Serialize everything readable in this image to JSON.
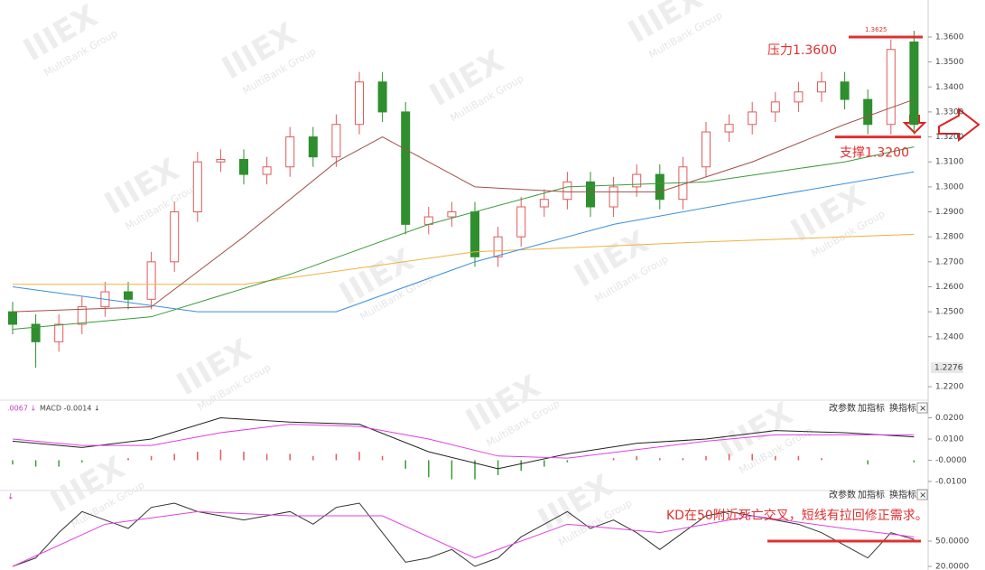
{
  "watermark": "MultiBank Group",
  "logo": "IIIEX",
  "buttons": [
    "改参数",
    "加指标",
    "换指标",
    "×"
  ],
  "chart_data": [
    {
      "type": "candlestick",
      "up_color": "#e05a5a",
      "down_color": "#2f8f2f",
      "open": [
        1.25,
        1.245,
        1.238,
        1.245,
        1.252,
        1.258,
        1.255,
        1.27,
        1.29,
        1.31,
        1.311,
        1.305,
        1.308,
        1.32,
        1.312,
        1.325,
        1.342,
        1.33,
        1.285,
        1.288,
        1.29,
        1.272,
        1.28,
        1.292,
        1.295,
        1.302,
        1.292,
        1.3,
        1.305,
        1.295,
        1.308,
        1.322,
        1.325,
        1.33,
        1.334,
        1.338,
        1.342,
        1.335,
        1.325,
        1.358
      ],
      "high": [
        1.254,
        1.249,
        1.249,
        1.256,
        1.262,
        1.262,
        1.274,
        1.294,
        1.314,
        1.315,
        1.315,
        1.312,
        1.324,
        1.324,
        1.329,
        1.346,
        1.346,
        1.334,
        1.292,
        1.294,
        1.294,
        1.284,
        1.296,
        1.299,
        1.306,
        1.306,
        1.304,
        1.309,
        1.309,
        1.312,
        1.326,
        1.329,
        1.334,
        1.338,
        1.342,
        1.346,
        1.346,
        1.339,
        1.359,
        1.3625
      ],
      "low": [
        1.241,
        1.2276,
        1.234,
        1.241,
        1.248,
        1.251,
        1.251,
        1.266,
        1.286,
        1.306,
        1.301,
        1.301,
        1.304,
        1.308,
        1.308,
        1.321,
        1.326,
        1.281,
        1.281,
        1.284,
        1.268,
        1.268,
        1.276,
        1.288,
        1.291,
        1.288,
        1.288,
        1.296,
        1.291,
        1.291,
        1.304,
        1.318,
        1.321,
        1.326,
        1.33,
        1.334,
        1.331,
        1.321,
        1.321,
        1.321
      ],
      "close": [
        1.245,
        1.238,
        1.245,
        1.252,
        1.258,
        1.255,
        1.27,
        1.29,
        1.31,
        1.311,
        1.305,
        1.308,
        1.32,
        1.312,
        1.325,
        1.342,
        1.33,
        1.285,
        1.288,
        1.29,
        1.272,
        1.28,
        1.292,
        1.295,
        1.302,
        1.292,
        1.3,
        1.305,
        1.295,
        1.308,
        1.322,
        1.325,
        1.33,
        1.334,
        1.338,
        1.342,
        1.335,
        1.325,
        1.355,
        1.325
      ],
      "series": [
        {
          "color": "#f0b040",
          "x": [
            0,
            10,
            20,
            30,
            39
          ],
          "values": [
            1.261,
            1.261,
            1.274,
            1.278,
            1.281
          ]
        },
        {
          "color": "#3a8fdc",
          "x": [
            0,
            8,
            14,
            20,
            26,
            32,
            39
          ],
          "values": [
            1.26,
            1.25,
            1.25,
            1.27,
            1.285,
            1.295,
            1.306
          ]
        },
        {
          "color": "#3a9a3a",
          "x": [
            0,
            6,
            12,
            18,
            24,
            30,
            36,
            39
          ],
          "values": [
            1.243,
            1.248,
            1.265,
            1.285,
            1.3,
            1.302,
            1.31,
            1.316
          ]
        },
        {
          "color": "#a0504a",
          "x": [
            0,
            6,
            10,
            14,
            16,
            20,
            24,
            28,
            32,
            36,
            39
          ],
          "values": [
            1.25,
            1.252,
            1.28,
            1.31,
            1.32,
            1.3,
            1.298,
            1.298,
            1.31,
            1.325,
            1.335
          ]
        }
      ],
      "ylim": [
        1.2157,
        1.373
      ],
      "yticks": [
        {
          "value": 1.22,
          "label": "1.2200"
        },
        {
          "value": 1.24,
          "label": "1.2400"
        },
        {
          "value": 1.25,
          "label": "1.2500"
        },
        {
          "value": 1.26,
          "label": "1.2600"
        },
        {
          "value": 1.27,
          "label": "1.2700"
        },
        {
          "value": 1.28,
          "label": "1.2800"
        },
        {
          "value": 1.29,
          "label": "1.2900"
        },
        {
          "value": 1.3,
          "label": "1.3000"
        },
        {
          "value": 1.31,
          "label": "1.3100"
        },
        {
          "value": 1.32,
          "label": "1.3200"
        },
        {
          "value": 1.33,
          "label": "1.3300"
        },
        {
          "value": 1.34,
          "label": "1.3400"
        },
        {
          "value": 1.35,
          "label": "1.3500"
        },
        {
          "value": 1.36,
          "label": "1.3600"
        }
      ],
      "price_label": {
        "value": 1.2276,
        "label": "1.2276"
      },
      "annotations": [
        {
          "text": "压力1.3600",
          "value": 1.36
        },
        {
          "text": "支撑1.3200",
          "value": 1.32
        },
        {
          "text": "1.3625",
          "value": 1.3625
        }
      ]
    },
    {
      "type": "macd",
      "header": [
        ".0067 ↓",
        "MACD -0.0014 ↓"
      ],
      "up_color": "#e05a5a",
      "down_color": "#3a9a3a",
      "values": [
        -0.002,
        -0.003,
        -0.003,
        -0.001,
        0.0,
        0.001,
        0.002,
        0.003,
        0.004,
        0.005,
        0.004,
        0.003,
        0.003,
        0.002,
        0.003,
        0.004,
        0.002,
        -0.004,
        -0.008,
        -0.009,
        -0.009,
        -0.007,
        -0.005,
        -0.003,
        -0.001,
        0.0,
        0.001,
        0.002,
        0.001,
        0.001,
        0.002,
        0.003,
        0.003,
        0.002,
        0.002,
        0.001,
        0.0,
        -0.002,
        0.0,
        -0.001
      ],
      "series": [
        {
          "color": "#222222",
          "x": [
            0,
            3,
            6,
            9,
            12,
            15,
            18,
            21,
            24,
            27,
            30,
            33,
            36,
            39
          ],
          "values": [
            0.009,
            0.006,
            0.01,
            0.02,
            0.018,
            0.017,
            0.004,
            -0.004,
            0.003,
            0.008,
            0.01,
            0.014,
            0.013,
            0.011
          ]
        },
        {
          "color": "#e040e0",
          "x": [
            0,
            3,
            6,
            9,
            12,
            15,
            18,
            21,
            24,
            27,
            30,
            33,
            36,
            39
          ],
          "values": [
            0.01,
            0.007,
            0.007,
            0.013,
            0.017,
            0.016,
            0.01,
            0.002,
            0.001,
            0.005,
            0.009,
            0.012,
            0.012,
            0.012
          ]
        }
      ],
      "ylim": [
        -0.013,
        0.0245
      ],
      "yticks": [
        {
          "value": 0.02,
          "label": "0.0200"
        },
        {
          "value": 0.01,
          "label": "0.0100"
        },
        {
          "value": 0,
          "label": "-0.0000"
        },
        {
          "value": -0.01,
          "label": "-0.0100"
        }
      ]
    },
    {
      "type": "kd",
      "header": "↓",
      "series": [
        {
          "color": "#333333",
          "values": [
            20,
            30,
            60,
            85,
            75,
            65,
            90,
            95,
            85,
            80,
            75,
            80,
            85,
            70,
            90,
            95,
            60,
            25,
            30,
            40,
            20,
            30,
            55,
            70,
            85,
            65,
            75,
            60,
            40,
            60,
            80,
            85,
            80,
            75,
            70,
            60,
            45,
            30,
            60,
            52
          ]
        },
        {
          "color": "#e040e0",
          "x": [
            0,
            4,
            8,
            12,
            16,
            20,
            24,
            28,
            32,
            36,
            39
          ],
          "values": [
            20,
            70,
            85,
            80,
            80,
            30,
            70,
            60,
            80,
            65,
            55
          ]
        }
      ],
      "ylim": [
        15.7,
        102.5
      ],
      "yticks": [
        {
          "value": 50,
          "label": "50.0000"
        },
        {
          "value": 20,
          "label": "20.0000"
        }
      ],
      "annotation": {
        "text": "KD在50附近死亡交叉，短线有拉回修正需求。",
        "value": 50
      }
    }
  ]
}
